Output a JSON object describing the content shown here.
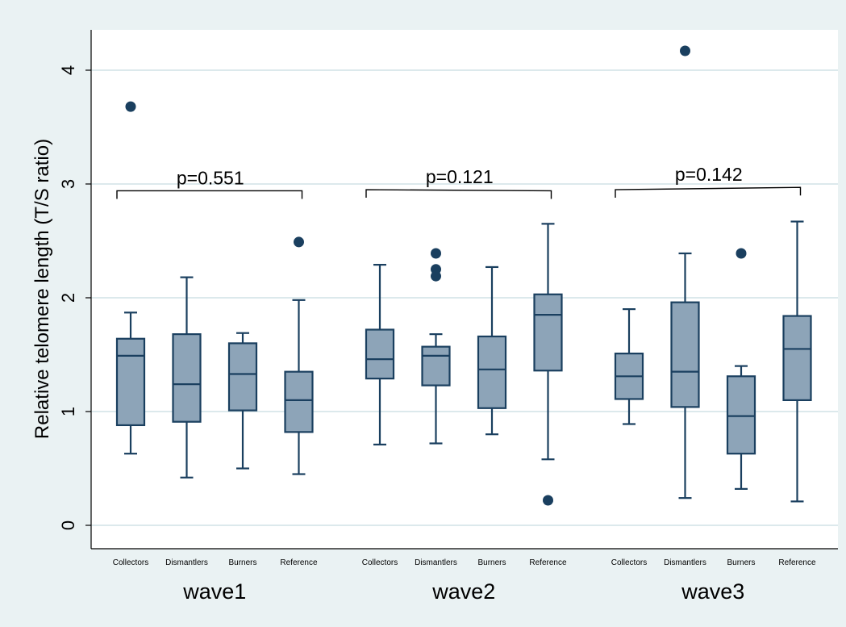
{
  "chart_data": {
    "type": "box",
    "title": "",
    "ylabel": "Relative telomere length (T/S ratio)",
    "xlabel": "",
    "ylim": [
      0,
      4.3
    ],
    "yticks": [
      "0",
      "1",
      "2",
      "3",
      "4"
    ],
    "ytick_values": [
      0,
      1,
      2,
      3,
      4
    ],
    "grid": true,
    "colors": {
      "box_fill": "#8da4b8",
      "line": "#1a3f5f",
      "outlier": "#1a3f5f",
      "grid": "#dce9ec",
      "background": "#eaf2f3"
    },
    "groups": [
      {
        "name": "wave1",
        "pvalue": "p=0.551",
        "categories": [
          {
            "label": "Collectors",
            "whisker_low": 0.63,
            "q1": 0.88,
            "median": 1.49,
            "q3": 1.64,
            "whisker_high": 1.87,
            "outliers": [
              3.68
            ]
          },
          {
            "label": "Dismantlers",
            "whisker_low": 0.42,
            "q1": 0.91,
            "median": 1.24,
            "q3": 1.68,
            "whisker_high": 2.18,
            "outliers": []
          },
          {
            "label": "Burners",
            "whisker_low": 0.5,
            "q1": 1.01,
            "median": 1.33,
            "q3": 1.6,
            "whisker_high": 1.69,
            "outliers": []
          },
          {
            "label": "Reference",
            "whisker_low": 0.45,
            "q1": 0.82,
            "median": 1.1,
            "q3": 1.35,
            "whisker_high": 1.98,
            "outliers": [
              2.49
            ]
          }
        ]
      },
      {
        "name": "wave2",
        "pvalue": "p=0.121",
        "categories": [
          {
            "label": "Collectors",
            "whisker_low": 0.71,
            "q1": 1.29,
            "median": 1.46,
            "q3": 1.72,
            "whisker_high": 2.29,
            "outliers": []
          },
          {
            "label": "Dismantlers",
            "whisker_low": 0.72,
            "q1": 1.23,
            "median": 1.49,
            "q3": 1.57,
            "whisker_high": 1.68,
            "outliers": [
              2.19,
              2.25,
              2.39
            ]
          },
          {
            "label": "Burners",
            "whisker_low": 0.8,
            "q1": 1.03,
            "median": 1.37,
            "q3": 1.66,
            "whisker_high": 2.27,
            "outliers": []
          },
          {
            "label": "Reference",
            "whisker_low": 0.58,
            "q1": 1.36,
            "median": 1.85,
            "q3": 2.03,
            "whisker_high": 2.65,
            "outliers": [
              0.22
            ]
          }
        ]
      },
      {
        "name": "wave3",
        "pvalue": "p=0.142",
        "categories": [
          {
            "label": "Collectors",
            "whisker_low": 0.89,
            "q1": 1.11,
            "median": 1.31,
            "q3": 1.51,
            "whisker_high": 1.9,
            "outliers": []
          },
          {
            "label": "Dismantlers",
            "whisker_low": 0.24,
            "q1": 1.04,
            "median": 1.35,
            "q3": 1.96,
            "whisker_high": 2.39,
            "outliers": [
              4.17
            ]
          },
          {
            "label": "Burners",
            "whisker_low": 0.32,
            "q1": 0.63,
            "median": 0.96,
            "q3": 1.31,
            "whisker_high": 1.4,
            "outliers": [
              2.39
            ]
          },
          {
            "label": "Reference",
            "whisker_low": 0.21,
            "q1": 1.1,
            "median": 1.55,
            "q3": 1.84,
            "whisker_high": 2.67,
            "outliers": []
          }
        ]
      }
    ],
    "annotations": [
      {
        "text": "p=0.551",
        "from_group_cat": [
          0,
          0
        ],
        "to_group_cat": [
          0,
          3
        ],
        "y_left": 2.94,
        "y_right": 2.94
      },
      {
        "text": "p=0.121",
        "from_group_cat": [
          1,
          0
        ],
        "to_group_cat": [
          1,
          3
        ],
        "y_left": 2.95,
        "y_right": 2.94
      },
      {
        "text": "p=0.142",
        "from_group_cat": [
          2,
          0
        ],
        "to_group_cat": [
          2,
          3
        ],
        "y_left": 2.95,
        "y_right": 2.97
      }
    ]
  }
}
